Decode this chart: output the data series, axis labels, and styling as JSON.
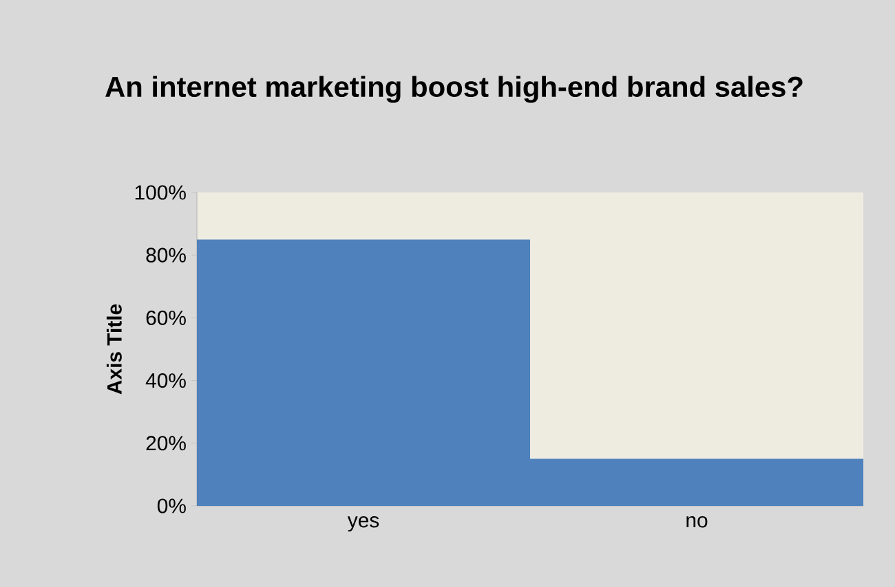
{
  "chart_data": {
    "type": "bar",
    "title": "An internet marketing boost high-end brand sales?",
    "ylabel": "Axis Title",
    "categories": [
      "yes",
      "no"
    ],
    "values": [
      85,
      15
    ],
    "color": "#4f81bd",
    "ylim": [
      0,
      100
    ],
    "yticks": [
      {
        "value": 0,
        "label": "0%"
      },
      {
        "value": 20,
        "label": "20%"
      },
      {
        "value": 40,
        "label": "40%"
      },
      {
        "value": 60,
        "label": "60%"
      },
      {
        "value": 80,
        "label": "80%"
      },
      {
        "value": 100,
        "label": "100%"
      }
    ]
  }
}
